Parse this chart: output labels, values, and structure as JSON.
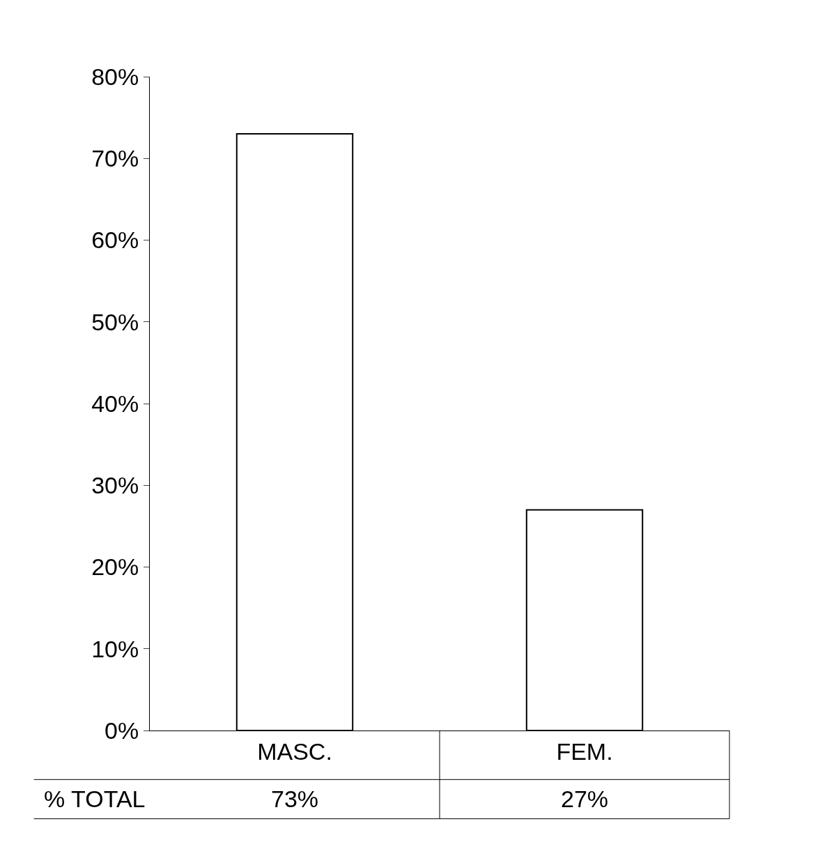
{
  "chart_data": {
    "type": "bar",
    "categories": [
      "MASC.",
      "FEM."
    ],
    "values": [
      73,
      27
    ],
    "value_labels": [
      "73%",
      "27%"
    ],
    "color": "#ffffff",
    "ylim": [
      0,
      80
    ],
    "yticks": [
      {
        "value": 0,
        "label": "0%"
      },
      {
        "value": 10,
        "label": "10%"
      },
      {
        "value": 20,
        "label": "20%"
      },
      {
        "value": 30,
        "label": "30%"
      },
      {
        "value": 40,
        "label": "40%"
      },
      {
        "value": 50,
        "label": "50%"
      },
      {
        "value": 60,
        "label": "60%"
      },
      {
        "value": 70,
        "label": "70%"
      },
      {
        "value": 80,
        "label": "80%"
      }
    ],
    "annotations": [
      "% TOTAL"
    ]
  }
}
